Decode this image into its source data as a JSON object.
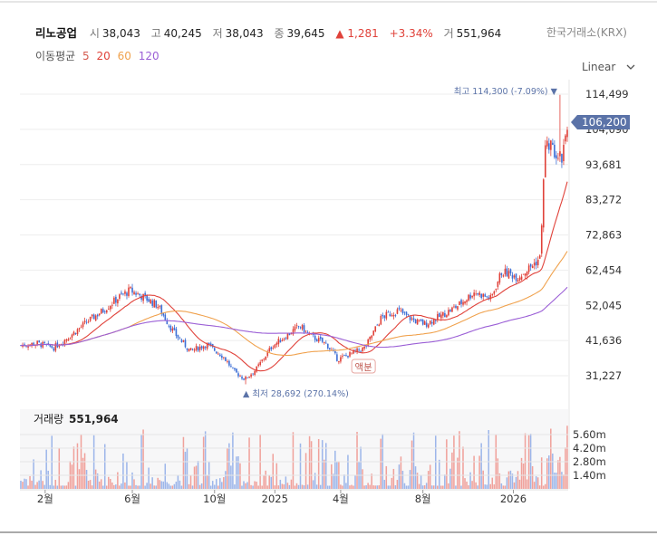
{
  "header": {
    "stock_name": "리노공업",
    "open_label": "시",
    "open": "38,043",
    "high_label": "고",
    "high": "40,245",
    "low_label": "저",
    "low": "38,043",
    "close_label": "종",
    "close": "39,645",
    "change": "▲ 1,281",
    "change_pct": "+3.34%",
    "volume_label": "거",
    "volume": "551,964",
    "exchange": "한국거래소(KRX)"
  },
  "moving_average": {
    "label": "이동평균",
    "periods": [
      {
        "value": "5",
        "color": "#d45a4e"
      },
      {
        "value": "20",
        "color": "#e0423a"
      },
      {
        "value": "60",
        "color": "#f0a24e"
      },
      {
        "value": "120",
        "color": "#9b5fd6"
      }
    ]
  },
  "scale_selector": {
    "label": "Linear"
  },
  "chart_data": {
    "type": "candlestick",
    "y_ticks": [
      "114,499",
      "104,090",
      "93,681",
      "83,272",
      "72,863",
      "62,454",
      "52,045",
      "41,636",
      "31,227"
    ],
    "ylim": [
      28000,
      119000
    ],
    "x_ticks": [
      "2월",
      "6월",
      "10월",
      "2025",
      "4월",
      "8월",
      "2026"
    ],
    "price_path": [
      [
        0,
        40200
      ],
      [
        0.03,
        40800
      ],
      [
        0.06,
        39500
      ],
      [
        0.09,
        43000
      ],
      [
        0.12,
        47000
      ],
      [
        0.15,
        50500
      ],
      [
        0.18,
        54500
      ],
      [
        0.2,
        56500
      ],
      [
        0.23,
        54000
      ],
      [
        0.25,
        52000
      ],
      [
        0.28,
        44000
      ],
      [
        0.31,
        38500
      ],
      [
        0.34,
        40500
      ],
      [
        0.37,
        37000
      ],
      [
        0.39,
        32500
      ],
      [
        0.41,
        30200
      ],
      [
        0.43,
        33000
      ],
      [
        0.46,
        40000
      ],
      [
        0.49,
        43500
      ],
      [
        0.51,
        46000
      ],
      [
        0.53,
        43000
      ],
      [
        0.56,
        40500
      ],
      [
        0.58,
        36000
      ],
      [
        0.6,
        37500
      ],
      [
        0.63,
        39500
      ],
      [
        0.66,
        48500
      ],
      [
        0.69,
        50500
      ],
      [
        0.72,
        47500
      ],
      [
        0.74,
        46500
      ],
      [
        0.77,
        49000
      ],
      [
        0.8,
        52000
      ],
      [
        0.83,
        56000
      ],
      [
        0.86,
        54000
      ],
      [
        0.88,
        62000
      ],
      [
        0.91,
        60500
      ],
      [
        0.93,
        63000
      ],
      [
        0.95,
        66000
      ],
      [
        0.96,
        100000
      ],
      [
        0.975,
        98000
      ],
      [
        0.99,
        96000
      ],
      [
        1.0,
        106200
      ]
    ],
    "max_annotation": "최고 114,300 (-7.09%)",
    "min_annotation": "최저 28,692 (270.14%)",
    "last_price_label": "106,200",
    "event_marker": "액분",
    "volume_title_label": "거래량",
    "volume_value": "551,964",
    "volume_ticks": [
      "5.60m",
      "4.20m",
      "2.80m",
      "1.40m"
    ]
  }
}
